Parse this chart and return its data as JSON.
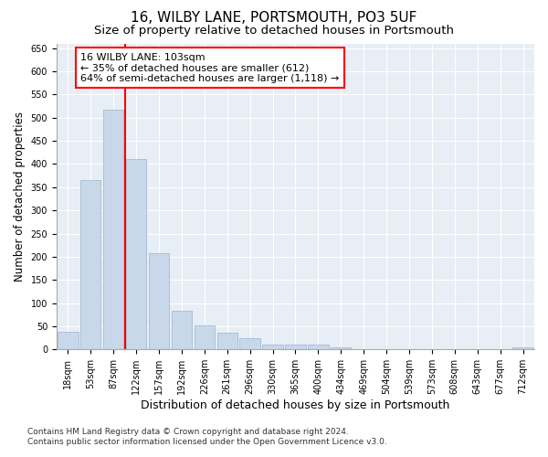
{
  "title": "16, WILBY LANE, PORTSMOUTH, PO3 5UF",
  "subtitle": "Size of property relative to detached houses in Portsmouth",
  "xlabel": "Distribution of detached houses by size in Portsmouth",
  "ylabel": "Number of detached properties",
  "categories": [
    "18sqm",
    "53sqm",
    "87sqm",
    "122sqm",
    "157sqm",
    "192sqm",
    "226sqm",
    "261sqm",
    "296sqm",
    "330sqm",
    "365sqm",
    "400sqm",
    "434sqm",
    "469sqm",
    "504sqm",
    "539sqm",
    "573sqm",
    "608sqm",
    "643sqm",
    "677sqm",
    "712sqm"
  ],
  "values": [
    38,
    365,
    517,
    410,
    207,
    83,
    52,
    36,
    24,
    10,
    10,
    10,
    5,
    0,
    0,
    0,
    0,
    0,
    0,
    0,
    5
  ],
  "bar_color": "#c8d8ea",
  "bar_edge_color": "#9ab4cc",
  "vline_x": 2.5,
  "vline_color": "red",
  "annotation_text": "16 WILBY LANE: 103sqm\n← 35% of detached houses are smaller (612)\n64% of semi-detached houses are larger (1,118) →",
  "annotation_box_facecolor": "white",
  "annotation_box_edgecolor": "red",
  "footnote_line1": "Contains HM Land Registry data © Crown copyright and database right 2024.",
  "footnote_line2": "Contains public sector information licensed under the Open Government Licence v3.0.",
  "ylim": [
    0,
    660
  ],
  "yticks": [
    0,
    50,
    100,
    150,
    200,
    250,
    300,
    350,
    400,
    450,
    500,
    550,
    600,
    650
  ],
  "bg_color": "#ffffff",
  "plot_bg_color": "#e8eef5",
  "title_fontsize": 11,
  "subtitle_fontsize": 9.5,
  "tick_fontsize": 7,
  "xlabel_fontsize": 9,
  "ylabel_fontsize": 8.5,
  "annot_fontsize": 8
}
